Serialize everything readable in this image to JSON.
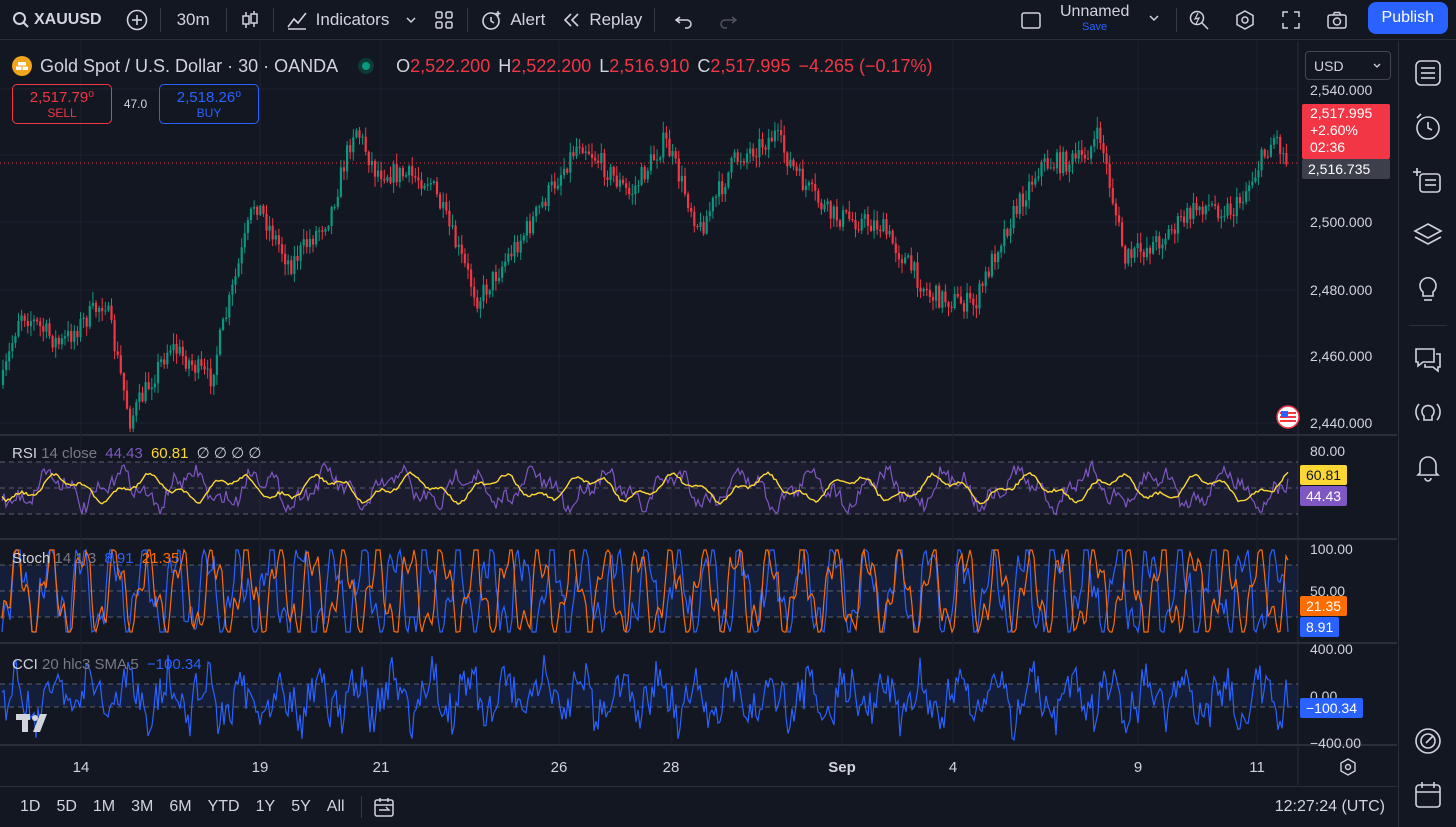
{
  "toolbar": {
    "symbol": "XAUUSD",
    "interval": "30m",
    "indicators_label": "Indicators",
    "alert_label": "Alert",
    "replay_label": "Replay",
    "layout_name": "Unnamed",
    "save_label": "Save",
    "publish_label": "Publish"
  },
  "legend": {
    "title": "Gold Spot / U.S. Dollar · 30 · OANDA",
    "open_key": "O",
    "open": "2,522.200",
    "high_key": "H",
    "high": "2,522.200",
    "low_key": "L",
    "low": "2,516.910",
    "close_key": "C",
    "close": "2,517.995",
    "change": "−4.265 (−0.17%)"
  },
  "trade": {
    "sell_price": "2,517.79⁰",
    "sell_label": "SELL",
    "spread": "47.0",
    "buy_price": "2,518.26⁰",
    "buy_label": "BUY"
  },
  "currency": "USD",
  "price_scale": [
    "2,540.000",
    "2,500.000",
    "2,480.000",
    "2,460.000",
    "2,440.000"
  ],
  "price_badge": {
    "price": "2,517.995",
    "change": "+2.60%",
    "countdown": "02:36",
    "line": "2,516.735"
  },
  "rsi": {
    "name": "RSI",
    "params": "14 close",
    "value": "44.43",
    "ma": "60.81",
    "na": "∅ ∅ ∅ ∅",
    "scale_top": "80.00",
    "badge_ma": "60.81",
    "badge_val": "44.43"
  },
  "stoch": {
    "name": "Stoch",
    "params": "14 1 3",
    "k": "8.91",
    "d": "21.35",
    "scale_top": "100.00",
    "scale_mid": "50.00",
    "badge_d": "21.35",
    "badge_k": "8.91"
  },
  "cci": {
    "name": "CCI",
    "params": "20 hlc3 SMA 5",
    "value": "−100.34",
    "scale_top": "400.00",
    "scale_mid": "0.00",
    "scale_bot": "−400.00",
    "badge": "−100.34"
  },
  "time_axis": [
    "14",
    "19",
    "21",
    "26",
    "28",
    "Sep",
    "4",
    "9",
    "11"
  ],
  "ranges": [
    "1D",
    "5D",
    "1M",
    "3M",
    "6M",
    "YTD",
    "1Y",
    "5Y",
    "All"
  ],
  "clock": "12:27:24 (UTC)",
  "colors": {
    "up": "#089981",
    "down": "#f23645",
    "rsi": "#7e57c2",
    "rsi_ma": "#fdd835",
    "stoch_k": "#2962ff",
    "stoch_d": "#ff6d00",
    "cci": "#2962ff",
    "accent": "#2962ff"
  }
}
